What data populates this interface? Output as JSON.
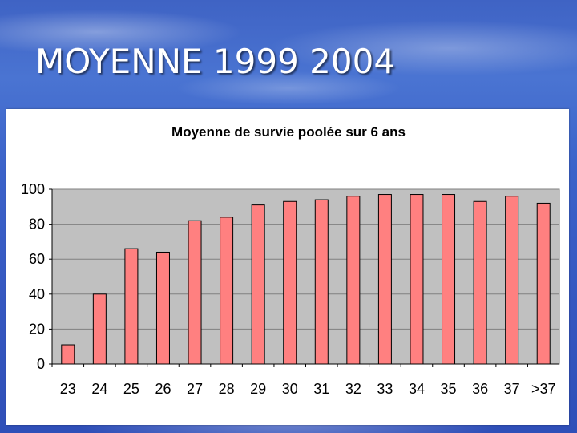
{
  "slide": {
    "title": "MOYENNE 1999 2004"
  },
  "chart_data": {
    "type": "bar",
    "title": "Moyenne de survie poolée sur 6 ans",
    "xlabel": "",
    "ylabel": "",
    "categories": [
      "23",
      "24",
      "25",
      "26",
      "27",
      "28",
      "29",
      "30",
      "31",
      "32",
      "33",
      "34",
      "35",
      "36",
      "37",
      ">37"
    ],
    "values": [
      11,
      40,
      66,
      64,
      82,
      84,
      91,
      93,
      94,
      96,
      97,
      97,
      97,
      93,
      96,
      92
    ],
    "ylim": [
      0,
      100
    ],
    "yticks": [
      "0",
      "20",
      "40",
      "60",
      "80",
      "100"
    ],
    "grid": true,
    "legend": "none",
    "colors": {
      "bar_fill": "#ff8080",
      "bar_stroke": "#000000",
      "plot_bg": "#c0c0c0",
      "grid": "#808080"
    }
  }
}
